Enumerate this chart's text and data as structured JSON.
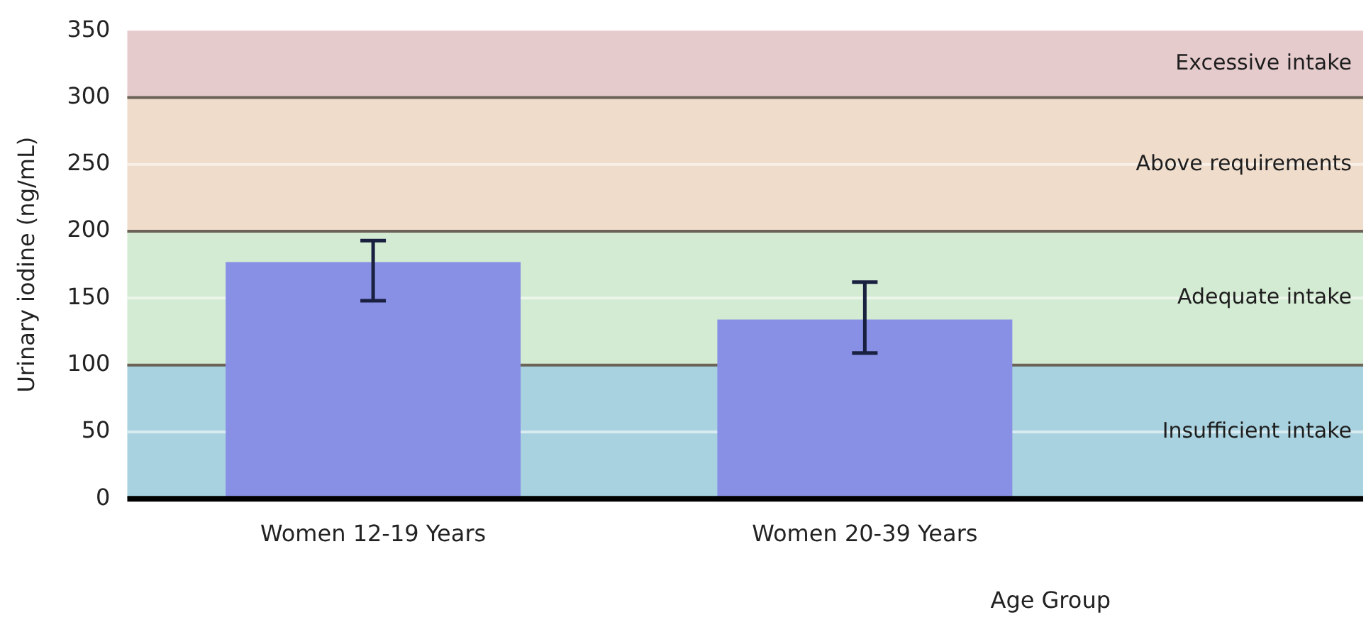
{
  "chart_data": {
    "type": "bar",
    "xlabel": "Age Group",
    "ylabel": "Urinary iodine (ng/mL)",
    "categories": [
      "Women 12-19 Years",
      "Women 20-39 Years"
    ],
    "values": [
      177,
      134
    ],
    "errors": [
      [
        148,
        193
      ],
      [
        109,
        162
      ]
    ],
    "color": "#8890e6",
    "ylim": [
      0,
      350
    ],
    "yticks": [
      0,
      50,
      100,
      150,
      200,
      250,
      300,
      350
    ],
    "grid": "y",
    "legend": false,
    "bands": [
      {
        "axis": "y",
        "from": 0,
        "to": 100,
        "label": "Insufficient intake",
        "color": "#a8d2e0"
      },
      {
        "axis": "y",
        "from": 100,
        "to": 200,
        "label": "Adequate intake",
        "color": "#d3ebd2"
      },
      {
        "axis": "y",
        "from": 200,
        "to": 300,
        "label": "Above requirements",
        "color": "#efdccb"
      },
      {
        "axis": "y",
        "from": 300,
        "to": 350,
        "label": "Excessive intake",
        "color": "#e6cbcd"
      }
    ]
  }
}
